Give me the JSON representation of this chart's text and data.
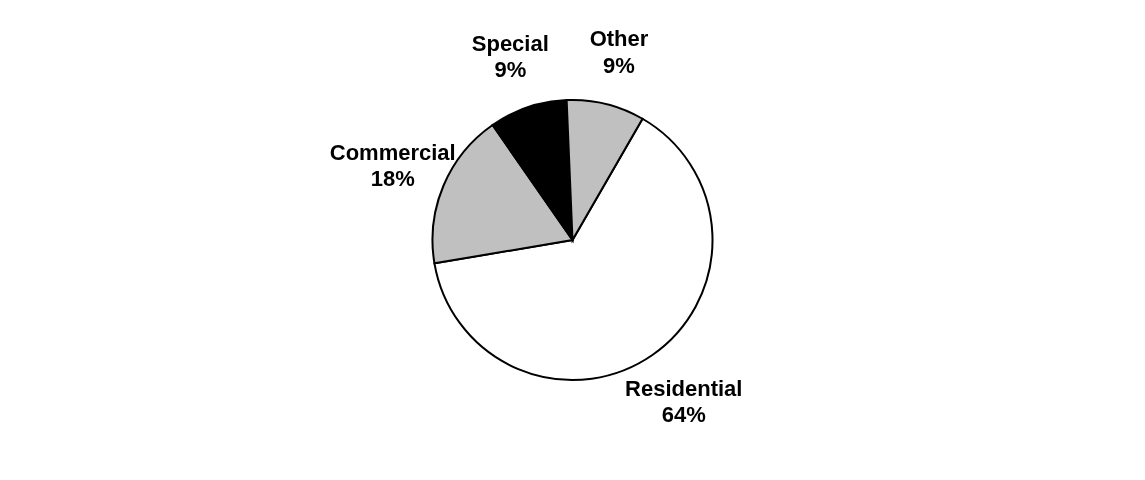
{
  "chart_data": {
    "type": "pie",
    "categories": [
      "Residential",
      "Commercial",
      "Special",
      "Other"
    ],
    "values": [
      64,
      18,
      9,
      9
    ],
    "colors": [
      "#ffffff",
      "#c0c0c0",
      "#000000",
      "#c0c0c0"
    ],
    "value_labels": [
      "64%",
      "18%",
      "9%",
      "9%"
    ],
    "legend": false
  }
}
